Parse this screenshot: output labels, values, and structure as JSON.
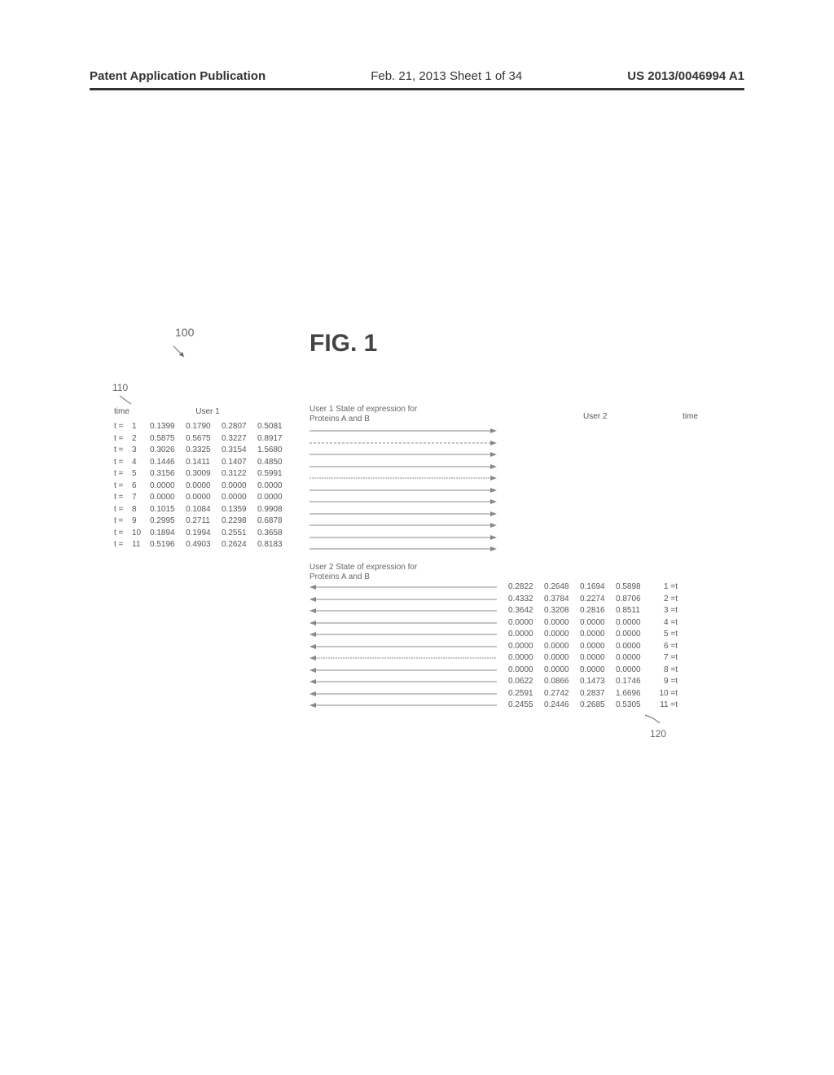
{
  "header": {
    "left": "Patent Application Publication",
    "center": "Feb. 21, 2013  Sheet 1 of 34",
    "right": "US 2013/0046994 A1"
  },
  "figure": {
    "ref_100": "100",
    "ref_110": "110",
    "ref_120": "120",
    "title": "FIG. 1",
    "user1_label": "User 1",
    "time_label": "time",
    "user2_label": "User 2",
    "time2_label": "time",
    "user1_expression": "User 1 State of expression for\nProteins A and B",
    "user2_expression": "User 2 State of expression for\nProteins A and B",
    "arrow_color_right": "#888888",
    "arrow_color_left": "#888888",
    "arrow_width": 230,
    "arrow_dash_short": "3,2",
    "arrow_dash_long": "2,1",
    "text_color": "#555555",
    "label_color": "#666666",
    "user1_arrow_styles": [
      "solid",
      "dash",
      "solid",
      "solid",
      "dashfine",
      "solid",
      "solid",
      "solid",
      "solid",
      "solid",
      "solid"
    ],
    "user2_arrow_styles": [
      "solid",
      "solid",
      "solid",
      "solid",
      "solid",
      "solid",
      "dashfine",
      "solid",
      "solid",
      "solid",
      "solid"
    ],
    "user1_rows": [
      {
        "t": 1,
        "v": [
          "0.1399",
          "0.1790",
          "0.2807",
          "0.5081"
        ]
      },
      {
        "t": 2,
        "v": [
          "0.5875",
          "0.5675",
          "0.3227",
          "0.8917"
        ]
      },
      {
        "t": 3,
        "v": [
          "0.3026",
          "0.3325",
          "0.3154",
          "1.5680"
        ]
      },
      {
        "t": 4,
        "v": [
          "0.1446",
          "0.1411",
          "0.1407",
          "0.4850"
        ]
      },
      {
        "t": 5,
        "v": [
          "0.3156",
          "0.3009",
          "0.3122",
          "0.5991"
        ]
      },
      {
        "t": 6,
        "v": [
          "0.0000",
          "0.0000",
          "0.0000",
          "0.0000"
        ]
      },
      {
        "t": 7,
        "v": [
          "0.0000",
          "0.0000",
          "0.0000",
          "0.0000"
        ]
      },
      {
        "t": 8,
        "v": [
          "0.1015",
          "0.1084",
          "0.1359",
          "0.9908"
        ]
      },
      {
        "t": 9,
        "v": [
          "0.2995",
          "0.2711",
          "0.2298",
          "0.6878"
        ]
      },
      {
        "t": 10,
        "v": [
          "0.1894",
          "0.1994",
          "0.2551",
          "0.3658"
        ]
      },
      {
        "t": 11,
        "v": [
          "0.5196",
          "0.4903",
          "0.2624",
          "0.8183"
        ]
      }
    ],
    "user2_rows": [
      {
        "t": 1,
        "v": [
          "0.2822",
          "0.2648",
          "0.1694",
          "0.5898"
        ]
      },
      {
        "t": 2,
        "v": [
          "0.4332",
          "0.3784",
          "0.2274",
          "0.8706"
        ]
      },
      {
        "t": 3,
        "v": [
          "0.3642",
          "0.3208",
          "0.2816",
          "0.8511"
        ]
      },
      {
        "t": 4,
        "v": [
          "0.0000",
          "0.0000",
          "0.0000",
          "0.0000"
        ]
      },
      {
        "t": 5,
        "v": [
          "0.0000",
          "0.0000",
          "0.0000",
          "0.0000"
        ]
      },
      {
        "t": 6,
        "v": [
          "0.0000",
          "0.0000",
          "0.0000",
          "0.0000"
        ]
      },
      {
        "t": 7,
        "v": [
          "0.0000",
          "0.0000",
          "0.0000",
          "0.0000"
        ]
      },
      {
        "t": 8,
        "v": [
          "0.0000",
          "0.0000",
          "0.0000",
          "0.0000"
        ]
      },
      {
        "t": 9,
        "v": [
          "0.0622",
          "0.0866",
          "0.1473",
          "0.1746"
        ]
      },
      {
        "t": 10,
        "v": [
          "0.2591",
          "0.2742",
          "0.2837",
          "1.6696"
        ]
      },
      {
        "t": 11,
        "v": [
          "0.2455",
          "0.2446",
          "0.2685",
          "0.5305"
        ]
      }
    ]
  }
}
